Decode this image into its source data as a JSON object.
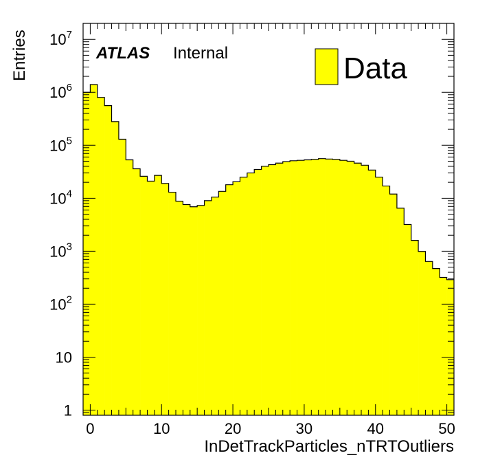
{
  "chart_data": {
    "type": "histogram",
    "title": "",
    "xlabel": "InDetTrackParticles_nTRTOutliers",
    "ylabel": "Entries",
    "xlim": [
      -1,
      51
    ],
    "ylim": [
      0.8,
      20000000
    ],
    "yscale": "log",
    "bin_width": 1,
    "x_ticks": [
      0,
      10,
      20,
      30,
      40,
      50
    ],
    "y_ticks": [
      {
        "value": 1,
        "base": "1",
        "exp": ""
      },
      {
        "value": 10,
        "base": "10",
        "exp": ""
      },
      {
        "value": 100,
        "base": "10",
        "exp": "2"
      },
      {
        "value": 1000,
        "base": "10",
        "exp": "3"
      },
      {
        "value": 10000,
        "base": "10",
        "exp": "4"
      },
      {
        "value": 100000,
        "base": "10",
        "exp": "5"
      },
      {
        "value": 1000000,
        "base": "10",
        "exp": "6"
      },
      {
        "value": 10000000,
        "base": "10",
        "exp": "7"
      }
    ],
    "fill_color": "#ffff00",
    "line_color": "#000000",
    "label_main": "ATLAS",
    "label_sub": "Internal",
    "legend": [
      {
        "name": "Data",
        "color": "#ffff00"
      }
    ],
    "series": [
      {
        "name": "Data",
        "x_low": [
          -1,
          0,
          1,
          2,
          3,
          4,
          5,
          6,
          7,
          8,
          9,
          10,
          11,
          12,
          13,
          14,
          15,
          16,
          17,
          18,
          19,
          20,
          21,
          22,
          23,
          24,
          25,
          26,
          27,
          28,
          29,
          30,
          31,
          32,
          33,
          34,
          35,
          36,
          37,
          38,
          39,
          40,
          41,
          42,
          43,
          44,
          45,
          46,
          47,
          48,
          49,
          50
        ],
        "values": [
          1000000,
          1400000,
          800000,
          560000,
          280000,
          130000,
          53000,
          36000,
          26000,
          21000,
          27000,
          19000,
          13000,
          8800,
          7600,
          6900,
          7300,
          9000,
          10500,
          13500,
          18000,
          20500,
          25000,
          30000,
          35000,
          40000,
          43000,
          46000,
          49000,
          51000,
          52000,
          53000,
          54000,
          56000,
          55000,
          54000,
          52000,
          50000,
          46000,
          42000,
          34000,
          25000,
          17000,
          12000,
          6500,
          3200,
          1600,
          990,
          640,
          470,
          320,
          290
        ]
      }
    ]
  }
}
